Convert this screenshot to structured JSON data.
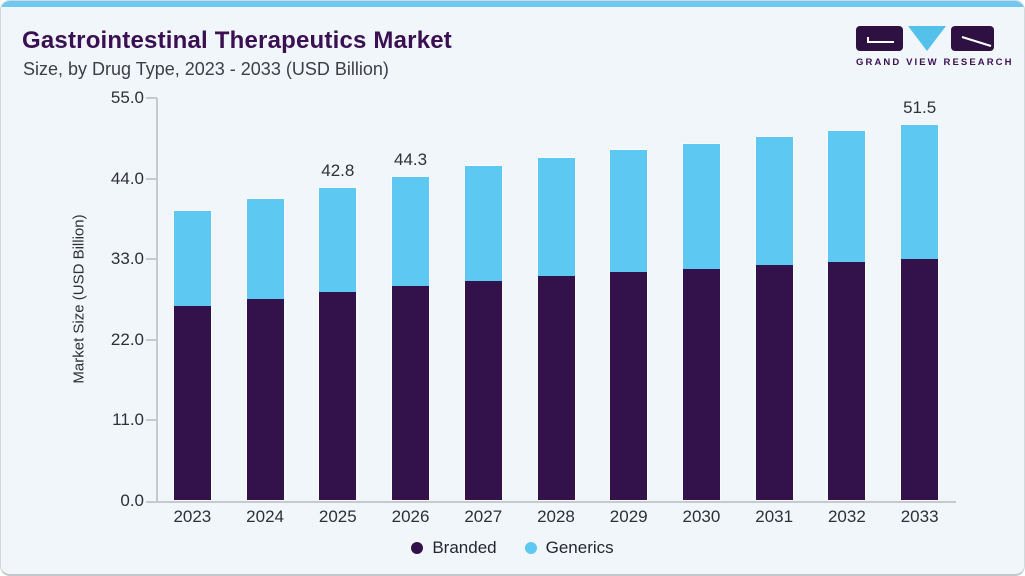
{
  "header": {
    "title": "Gastrointestinal Therapeutics Market",
    "subtitle": "Size, by Drug Type, 2023 - 2033 (USD Billion)",
    "logo_text": "GRAND VIEW RESEARCH"
  },
  "chart_data": {
    "type": "bar",
    "stacked": true,
    "title": "Gastrointestinal Therapeutics Market Size, by Drug Type, 2023 - 2033 (USD Billion)",
    "categories": [
      "2023",
      "2024",
      "2025",
      "2026",
      "2027",
      "2028",
      "2029",
      "2030",
      "2031",
      "2032",
      "2033"
    ],
    "series": [
      {
        "name": "Branded",
        "color": "#33114a",
        "values": [
          26.6,
          27.6,
          28.6,
          29.4,
          30.1,
          30.7,
          31.3,
          31.7,
          32.2,
          32.6,
          33.0
        ]
      },
      {
        "name": "Generics",
        "color": "#5dc9f3",
        "values": [
          13.1,
          13.7,
          14.2,
          14.9,
          15.7,
          16.2,
          16.7,
          17.2,
          17.6,
          18.1,
          18.5
        ]
      }
    ],
    "totals": [
      39.7,
      41.3,
      42.8,
      44.3,
      45.8,
      46.9,
      48.0,
      48.9,
      49.8,
      50.7,
      51.5
    ],
    "data_labels": [
      null,
      null,
      "42.8",
      "44.3",
      null,
      null,
      null,
      null,
      null,
      null,
      "51.5"
    ],
    "xlabel": "",
    "ylabel": "Market Size (USD Billion)",
    "ylim": [
      0,
      55
    ],
    "yticks": [
      "0.0",
      "11.0",
      "22.0",
      "33.0",
      "44.0",
      "55.0"
    ],
    "grid": false,
    "legend_position": "bottom",
    "legend": [
      "Branded",
      "Generics"
    ]
  },
  "colors": {
    "accent_strip": "#6ec8ef",
    "card_background": "#f0f6fa",
    "title": "#3a1053",
    "subtitle": "#3e3e46",
    "axis": "#c6cace",
    "branded": "#33114a",
    "generics": "#5dc9f3",
    "logo_purple": "#2e1042",
    "logo_blue": "#53c1ea"
  }
}
